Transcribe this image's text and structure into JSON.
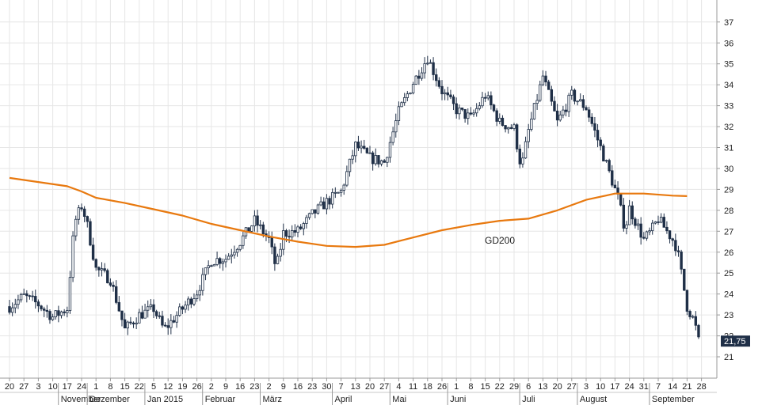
{
  "chart_data": {
    "type": "candlestick",
    "y_range": [
      20.5,
      37.6
    ],
    "y_ticks": [
      21,
      22,
      23,
      24,
      25,
      26,
      27,
      28,
      29,
      30,
      31,
      32,
      33,
      34,
      35,
      36,
      37
    ],
    "last_price_label": "21,75",
    "last_price": 21.75,
    "day_labels": [
      "20",
      "27",
      "3",
      "10",
      "17",
      "24",
      "1",
      "8",
      "15",
      "22",
      "5",
      "12",
      "19",
      "26",
      "2",
      "9",
      "16",
      "23",
      "2",
      "9",
      "16",
      "23",
      "30",
      "7",
      "13",
      "20",
      "27",
      "4",
      "11",
      "18",
      "26",
      "1",
      "8",
      "15",
      "22",
      "29",
      "6",
      "13",
      "20",
      "27",
      "3",
      "10",
      "17",
      "24",
      "31",
      "7",
      "14",
      "21",
      "28"
    ],
    "month_labels": [
      "November",
      "Dezember",
      "Jan 2015",
      "Februar",
      "März",
      "April",
      "Mai",
      "Juni",
      "Juli",
      "August",
      "September"
    ],
    "month_day_index": [
      4,
      6,
      10,
      14,
      18,
      23,
      27,
      31,
      36,
      40,
      45
    ],
    "ma_label": "GD200",
    "ma_color": "#e8790f",
    "candle_color": "#1f2f47",
    "ma_points": [
      [
        0,
        29.55
      ],
      [
        4,
        29.15
      ],
      [
        5,
        28.9
      ],
      [
        6,
        28.6
      ],
      [
        8,
        28.35
      ],
      [
        10,
        28.05
      ],
      [
        12,
        27.75
      ],
      [
        14,
        27.35
      ],
      [
        16,
        27.05
      ],
      [
        18,
        26.75
      ],
      [
        20,
        26.5
      ],
      [
        22,
        26.3
      ],
      [
        24,
        26.25
      ],
      [
        26,
        26.35
      ],
      [
        28,
        26.7
      ],
      [
        30,
        27.05
      ],
      [
        32,
        27.3
      ],
      [
        34,
        27.5
      ],
      [
        36,
        27.6
      ],
      [
        38,
        28.0
      ],
      [
        40,
        28.5
      ],
      [
        42,
        28.8
      ],
      [
        44,
        28.8
      ],
      [
        46,
        28.7
      ],
      [
        47,
        28.68
      ]
    ],
    "anchors": [
      [
        0,
        23.4
      ],
      [
        1,
        23.9
      ],
      [
        2,
        23.5
      ],
      [
        3,
        22.9
      ],
      [
        4,
        23.3
      ],
      [
        4.5,
        27.4
      ],
      [
        5,
        28.2
      ],
      [
        5.3,
        27.6
      ],
      [
        6,
        25.2
      ],
      [
        7,
        24.7
      ],
      [
        8,
        22.3
      ],
      [
        9,
        23.0
      ],
      [
        10,
        23.3
      ],
      [
        10.7,
        22.3
      ],
      [
        11,
        22.5
      ],
      [
        12,
        23.3
      ],
      [
        13,
        24.1
      ],
      [
        14,
        25.6
      ],
      [
        15,
        25.7
      ],
      [
        16,
        26.5
      ],
      [
        17,
        27.5
      ],
      [
        18,
        26.6
      ],
      [
        18.5,
        25.2
      ],
      [
        19,
        26.9
      ],
      [
        20,
        27.0
      ],
      [
        21,
        27.8
      ],
      [
        22,
        28.4
      ],
      [
        23,
        28.9
      ],
      [
        24,
        31.1
      ],
      [
        25,
        30.5
      ],
      [
        26,
        30.3
      ],
      [
        27,
        32.7
      ],
      [
        28,
        34.1
      ],
      [
        29,
        35.3
      ],
      [
        30,
        33.7
      ],
      [
        31,
        32.8
      ],
      [
        32,
        32.4
      ],
      [
        33,
        33.5
      ],
      [
        34,
        32.2
      ],
      [
        35,
        31.9
      ],
      [
        35.5,
        30.0
      ],
      [
        36,
        31.8
      ],
      [
        37,
        34.4
      ],
      [
        38,
        32.2
      ],
      [
        39,
        33.5
      ],
      [
        40,
        32.9
      ],
      [
        41,
        31.0
      ],
      [
        42,
        29.0
      ],
      [
        42.2,
        28.6
      ],
      [
        42.7,
        27.1
      ],
      [
        43,
        28.1
      ],
      [
        44,
        26.6
      ],
      [
        44.5,
        27.0
      ],
      [
        45,
        27.6
      ],
      [
        46,
        26.6
      ],
      [
        46.3,
        26.2
      ],
      [
        47,
        23.4
      ],
      [
        47.5,
        22.7
      ],
      [
        47.8,
        21.75
      ]
    ]
  }
}
